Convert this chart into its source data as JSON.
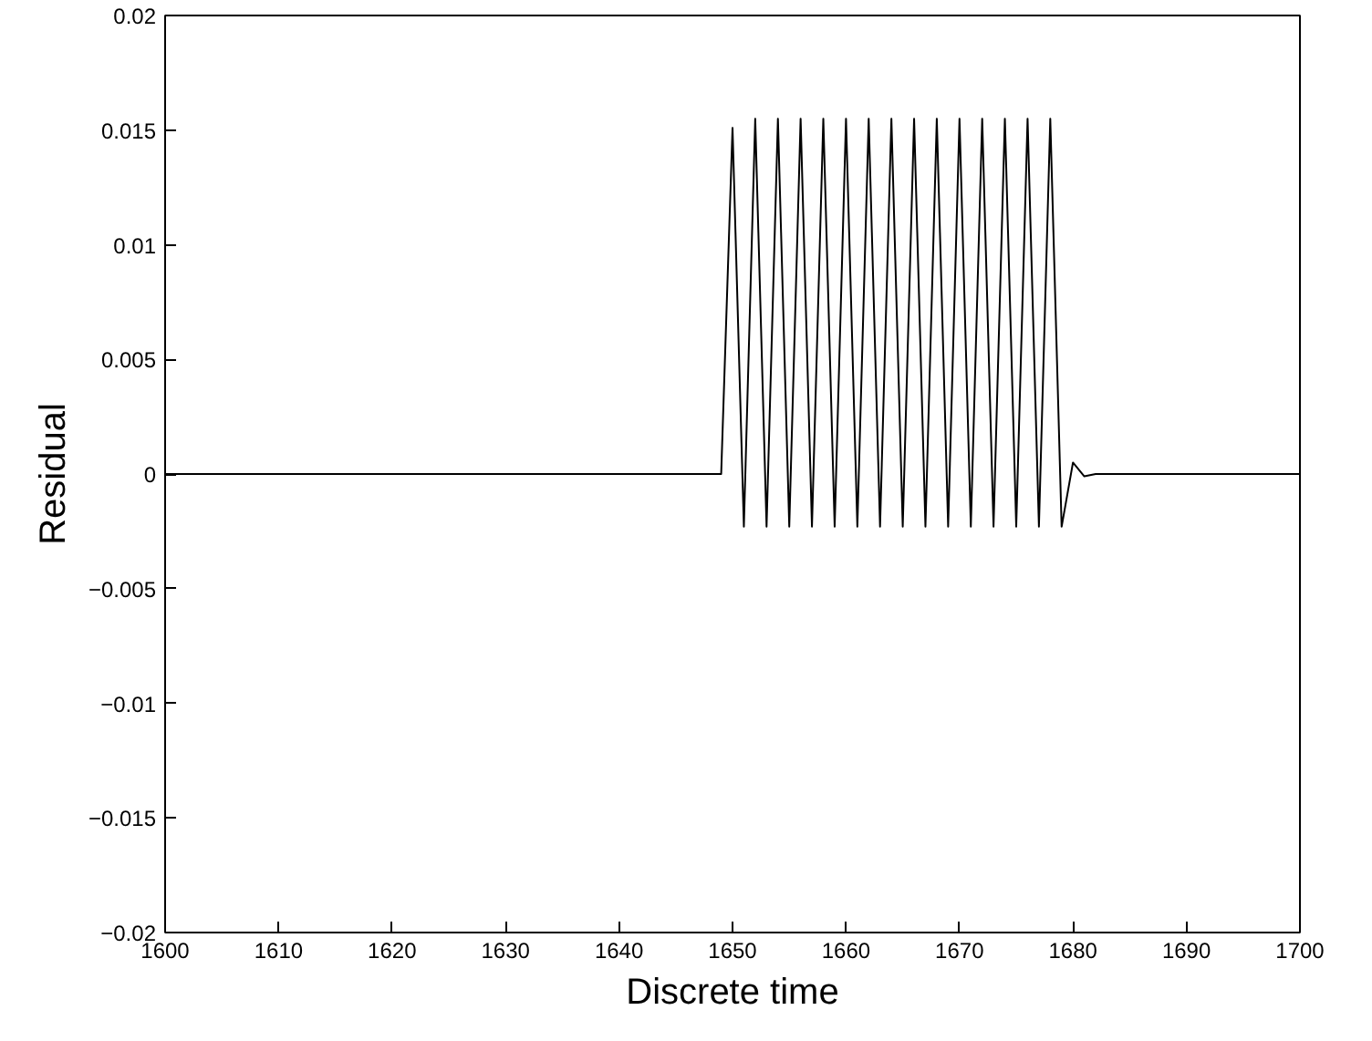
{
  "chart_data": {
    "type": "line",
    "xlabel": "Discrete time",
    "ylabel": "Residual",
    "x": [
      1600,
      1649,
      1650,
      1651,
      1652,
      1653,
      1654,
      1655,
      1656,
      1657,
      1658,
      1659,
      1660,
      1661,
      1662,
      1663,
      1664,
      1665,
      1666,
      1667,
      1668,
      1669,
      1670,
      1671,
      1672,
      1673,
      1674,
      1675,
      1676,
      1677,
      1678,
      1679,
      1680,
      1681,
      1682,
      1700
    ],
    "series": [
      {
        "color": "#000000",
        "values": [
          0,
          0,
          0.0151,
          -0.0023,
          0.0155,
          -0.0023,
          0.0155,
          -0.0023,
          0.0155,
          -0.0023,
          0.0155,
          -0.0023,
          0.0155,
          -0.0023,
          0.0155,
          -0.0023,
          0.0155,
          -0.0023,
          0.0155,
          -0.0023,
          0.0155,
          -0.0023,
          0.0155,
          -0.0023,
          0.0155,
          -0.0023,
          0.0155,
          -0.0023,
          0.0155,
          -0.0023,
          0.0155,
          -0.0023,
          0.0005,
          -0.0001,
          0,
          0
        ]
      }
    ],
    "xlim": [
      1600,
      1700
    ],
    "ylim": [
      -0.02,
      0.02
    ],
    "xticks": [
      1600,
      1610,
      1620,
      1630,
      1640,
      1650,
      1660,
      1670,
      1680,
      1690,
      1700
    ],
    "yticks": [
      {
        "value": -0.02,
        "label": "−0.02"
      },
      {
        "value": -0.015,
        "label": "−0.015"
      },
      {
        "value": -0.01,
        "label": "−0.01"
      },
      {
        "value": -0.005,
        "label": "−0.005"
      },
      0,
      0.005,
      0.01,
      0.015,
      0.02
    ],
    "grid": false,
    "marker": "none",
    "line_style": "solid"
  }
}
